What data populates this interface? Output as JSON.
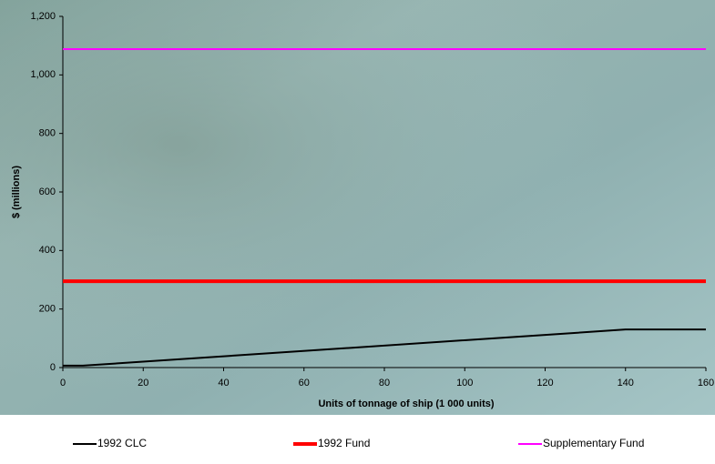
{
  "chart_data": {
    "type": "line",
    "x_label": "Units of tonnage of ship (1 000 units)",
    "y_label": "$ (millions)",
    "xlim": [
      0,
      160
    ],
    "xticks": [
      0,
      20,
      40,
      60,
      80,
      100,
      120,
      140,
      160
    ],
    "ylim": [
      0,
      1200
    ],
    "yticks": [
      0,
      200,
      400,
      600,
      800,
      {
        "value": 1000,
        "label": "1,000"
      },
      {
        "value": 1200,
        "label": "1,200"
      }
    ],
    "series": [
      {
        "name": "1992 CLC",
        "color": "#000000",
        "line_width": 2,
        "x": [
          0,
          5,
          140,
          160
        ],
        "values": [
          6.5,
          6.5,
          130,
          130
        ]
      },
      {
        "name": "1992 Fund",
        "color": "#ff0000",
        "line_width": 4,
        "x": [
          0,
          160
        ],
        "values": [
          295,
          295
        ]
      },
      {
        "name": "Supplementary Fund",
        "color": "#ff00ff",
        "line_width": 2,
        "x": [
          0,
          160
        ],
        "values": [
          1088,
          1088
        ]
      }
    ]
  }
}
